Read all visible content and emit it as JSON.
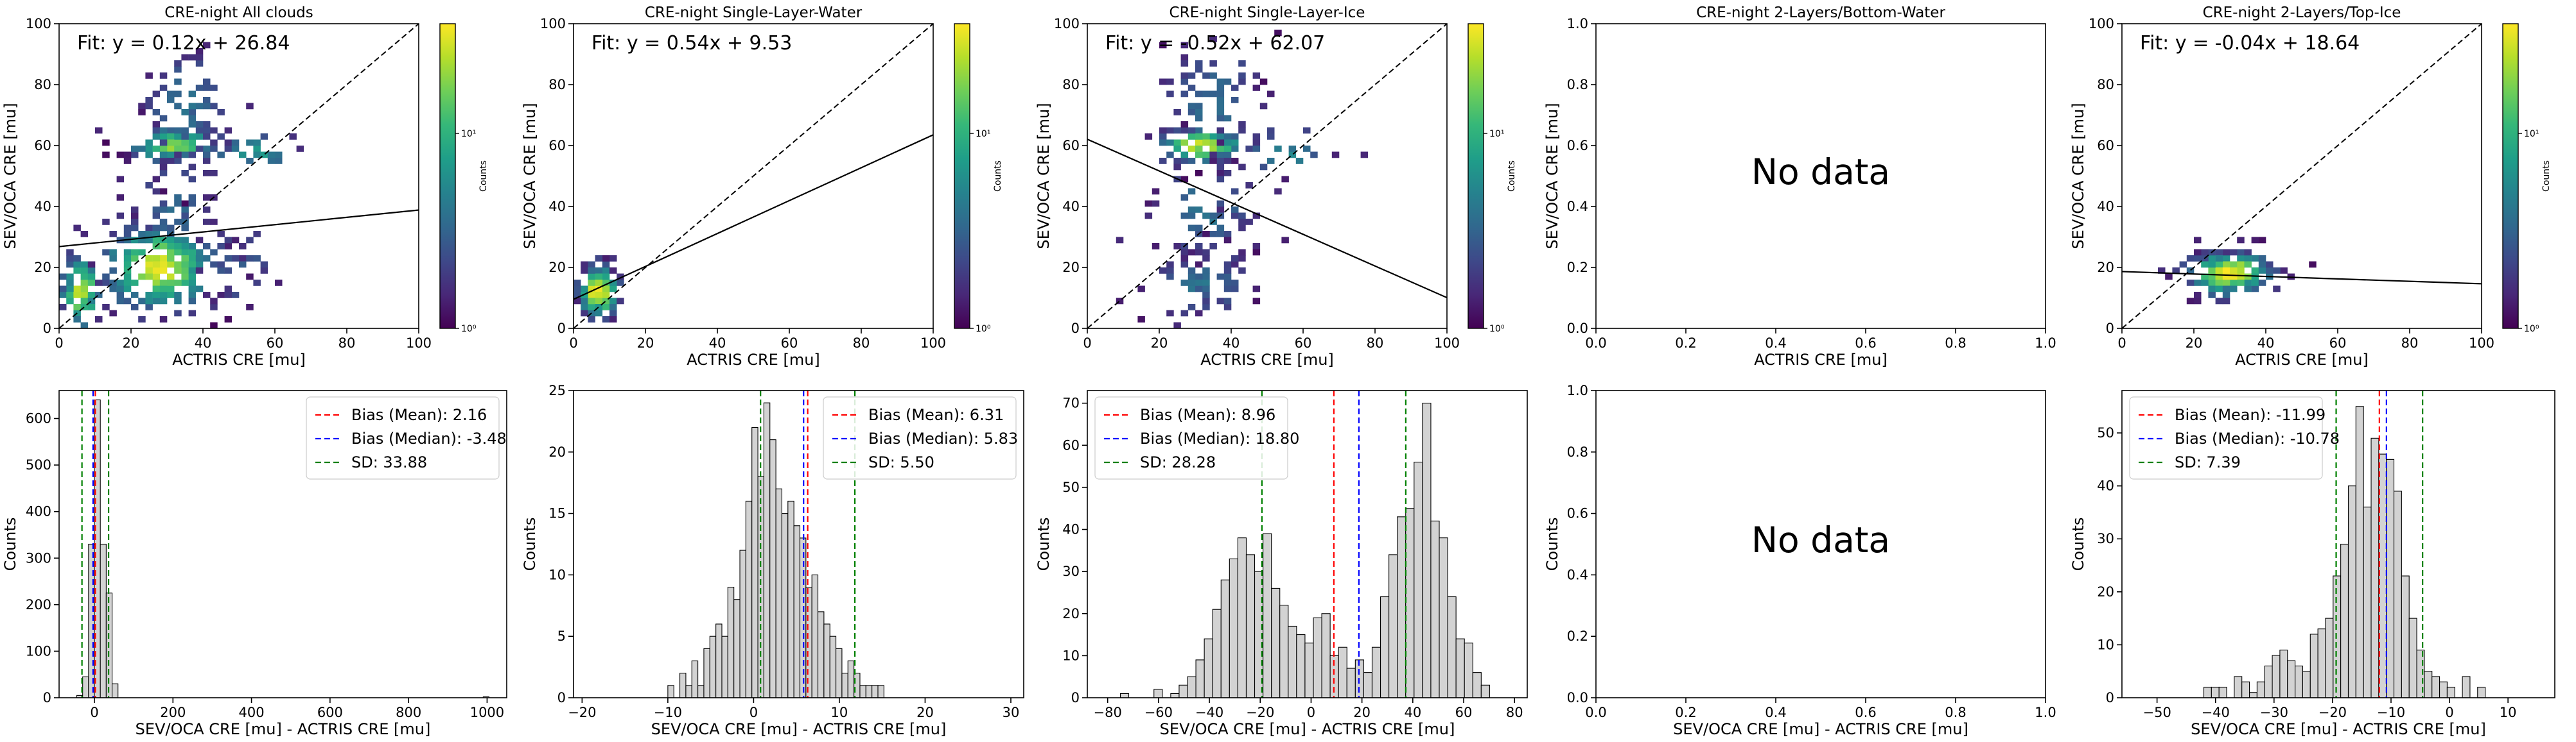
{
  "colormap": {
    "name": "viridis",
    "stops": [
      "#440154",
      "#482878",
      "#3e4989",
      "#31688e",
      "#26828e",
      "#1f9e89",
      "#35b779",
      "#6ece58",
      "#b5de2b",
      "#fde725"
    ]
  },
  "chart_data": [
    {
      "id": "cre-night-all-clouds-2d",
      "type": "heatmap",
      "title": "CRE-night All clouds",
      "xlabel": "ACTRIS CRE [mu]",
      "ylabel": "SEV/OCA CRE [mu]",
      "xlim": [
        0,
        100
      ],
      "ylim": [
        0,
        100
      ],
      "xticks": [
        "0",
        "20",
        "40",
        "60",
        "80",
        "100"
      ],
      "yticks": [
        "0",
        "20",
        "40",
        "60",
        "80",
        "100"
      ],
      "fit_text": "Fit: y = 0.12x + 26.84",
      "fit": {
        "slope": 0.12,
        "intercept": 26.84
      },
      "one_to_one": true,
      "colorbar": {
        "label": "Counts",
        "ticks": [
          "10⁰",
          "10¹"
        ],
        "scale": "log"
      },
      "clusters": [
        {
          "x": 6,
          "y": 12,
          "sx": 3,
          "sy": 7,
          "n": 70,
          "w": 0.85
        },
        {
          "x": 28,
          "y": 20,
          "sx": 9,
          "sy": 8,
          "n": 210,
          "w": 0.9
        },
        {
          "x": 32,
          "y": 60,
          "sx": 7,
          "sy": 3,
          "n": 80,
          "w": 0.75
        },
        {
          "x": 35,
          "y": 72,
          "sx": 7,
          "sy": 12,
          "n": 70,
          "w": 0.3
        },
        {
          "x": 32,
          "y": 38,
          "sx": 8,
          "sy": 10,
          "n": 45,
          "w": 0.25
        },
        {
          "x": 55,
          "y": 58,
          "sx": 8,
          "sy": 4,
          "n": 25,
          "w": 0.45
        },
        {
          "x": 50,
          "y": 20,
          "sx": 10,
          "sy": 8,
          "n": 30,
          "w": 0.2
        }
      ]
    },
    {
      "id": "cre-night-single-layer-water-2d",
      "type": "heatmap",
      "title": "CRE-night Single-Layer-Water",
      "xlabel": "ACTRIS CRE [mu]",
      "ylabel": "SEV/OCA CRE [mu]",
      "xlim": [
        0,
        100
      ],
      "ylim": [
        0,
        100
      ],
      "xticks": [
        "0",
        "20",
        "40",
        "60",
        "80",
        "100"
      ],
      "yticks": [
        "0",
        "20",
        "40",
        "60",
        "80",
        "100"
      ],
      "fit_text": "Fit: y = 0.54x + 9.53",
      "fit": {
        "slope": 0.54,
        "intercept": 9.53
      },
      "one_to_one": true,
      "colorbar": {
        "label": "Counts",
        "ticks": [
          "10⁰",
          "10¹"
        ],
        "scale": "log"
      },
      "clusters": [
        {
          "x": 7,
          "y": 12,
          "sx": 3,
          "sy": 5,
          "n": 110,
          "w": 0.9
        }
      ]
    },
    {
      "id": "cre-night-single-layer-ice-2d",
      "type": "heatmap",
      "title": "CRE-night Single-Layer-Ice",
      "xlabel": "ACTRIS CRE [mu]",
      "ylabel": "SEV/OCA CRE [mu]",
      "xlim": [
        0,
        100
      ],
      "ylim": [
        0,
        100
      ],
      "xticks": [
        "0",
        "20",
        "40",
        "60",
        "80",
        "100"
      ],
      "yticks": [
        "0",
        "20",
        "40",
        "60",
        "80",
        "100"
      ],
      "fit_text": "Fit: y = -0.52x + 62.07",
      "fit": {
        "slope": -0.52,
        "intercept": 62.07
      },
      "one_to_one": true,
      "colorbar": {
        "label": "Counts",
        "ticks": [
          "10⁰",
          "10¹"
        ],
        "scale": "log"
      },
      "clusters": [
        {
          "x": 32,
          "y": 60,
          "sx": 7,
          "sy": 3,
          "n": 90,
          "w": 0.85
        },
        {
          "x": 35,
          "y": 75,
          "sx": 7,
          "sy": 12,
          "n": 70,
          "w": 0.3
        },
        {
          "x": 32,
          "y": 38,
          "sx": 9,
          "sy": 10,
          "n": 60,
          "w": 0.3
        },
        {
          "x": 32,
          "y": 15,
          "sx": 8,
          "sy": 6,
          "n": 60,
          "w": 0.3
        },
        {
          "x": 55,
          "y": 58,
          "sx": 8,
          "sy": 4,
          "n": 20,
          "w": 0.4
        }
      ]
    },
    {
      "id": "cre-night-2-layers-bottom-water-2d",
      "type": "heatmap",
      "title": "CRE-night 2-Layers/Bottom-Water",
      "xlabel": "ACTRIS CRE [mu]",
      "ylabel": "SEV/OCA CRE [mu]",
      "xlim": [
        0,
        1
      ],
      "ylim": [
        0,
        1
      ],
      "xticks": [
        "0.0",
        "0.2",
        "0.4",
        "0.6",
        "0.8",
        "1.0"
      ],
      "yticks": [
        "0.0",
        "0.2",
        "0.4",
        "0.6",
        "0.8",
        "1.0"
      ],
      "no_data_text": "No data"
    },
    {
      "id": "cre-night-2-layers-top-ice-2d",
      "type": "heatmap",
      "title": "CRE-night 2-Layers/Top-Ice",
      "xlabel": "ACTRIS CRE [mu]",
      "ylabel": "SEV/OCA CRE [mu]",
      "xlim": [
        0,
        100
      ],
      "ylim": [
        0,
        100
      ],
      "xticks": [
        "0",
        "20",
        "40",
        "60",
        "80",
        "100"
      ],
      "yticks": [
        "0",
        "20",
        "40",
        "60",
        "80",
        "100"
      ],
      "fit_text": "Fit: y = -0.04x + 18.64",
      "fit": {
        "slope": -0.04,
        "intercept": 18.64
      },
      "one_to_one": true,
      "colorbar": {
        "label": "Counts",
        "ticks": [
          "10⁰",
          "10¹"
        ],
        "scale": "log"
      },
      "clusters": [
        {
          "x": 30,
          "y": 18,
          "sx": 7,
          "sy": 4,
          "n": 160,
          "w": 0.9
        }
      ]
    },
    {
      "id": "all-clouds-bias-hist",
      "type": "bar",
      "xlabel": "SEV/OCA CRE [mu] - ACTRIS CRE [mu]",
      "ylabel": "Counts",
      "xlim": [
        -90,
        1050
      ],
      "ylim": [
        0,
        660
      ],
      "xticks": [
        0,
        200,
        400,
        600,
        800,
        1000
      ],
      "yticks": [
        0,
        100,
        200,
        300,
        400,
        500,
        600
      ],
      "bin_start": -45,
      "bin_width": 15,
      "counts": [
        5,
        45,
        330,
        640,
        330,
        225,
        30,
        0,
        0,
        0,
        0,
        0,
        0,
        0,
        0,
        0,
        0,
        0,
        0,
        0,
        0,
        0,
        0,
        0,
        0,
        0,
        0,
        0,
        0,
        0,
        0,
        0,
        0,
        0,
        0,
        0,
        0,
        0,
        0,
        0,
        0,
        0,
        0,
        0,
        0,
        0,
        0,
        0,
        0,
        0,
        0,
        0,
        0,
        0,
        0,
        0,
        0,
        0,
        0,
        0,
        0,
        0,
        0,
        0,
        0,
        0,
        0,
        0,
        0,
        2
      ],
      "mean": 2.16,
      "median": -3.48,
      "sd": 33.88,
      "legend": [
        "Bias (Mean): 2.16",
        "Bias (Median): -3.48",
        "SD: 33.88"
      ],
      "legend_loc": "upper right"
    },
    {
      "id": "single-layer-water-bias-hist",
      "type": "bar",
      "xlabel": "SEV/OCA CRE [mu] - ACTRIS CRE [mu]",
      "ylabel": "Counts",
      "xlim": [
        -21,
        31.5
      ],
      "ylim": [
        0,
        25
      ],
      "xticks": [
        -20,
        -10,
        0,
        10,
        20,
        30
      ],
      "yticks": [
        0,
        5,
        10,
        15,
        20,
        25
      ],
      "bin_start": -10,
      "bin_width": 0.7,
      "counts": [
        1,
        0,
        2,
        1,
        3,
        1,
        4,
        5,
        6,
        5,
        9,
        8,
        12,
        16,
        22,
        18,
        24,
        21,
        17,
        15,
        16,
        14,
        13,
        9,
        10,
        7,
        6,
        5,
        4,
        2,
        3,
        2,
        1,
        1,
        1,
        1
      ],
      "mean": 6.31,
      "median": 5.83,
      "sd": 5.5,
      "legend": [
        "Bias (Mean): 6.31",
        "Bias (Median): 5.83",
        "SD: 5.50"
      ],
      "legend_loc": "upper right"
    },
    {
      "id": "single-layer-ice-bias-hist",
      "type": "bar",
      "xlabel": "SEV/OCA CRE [mu] - ACTRIS CRE [mu]",
      "ylabel": "Counts",
      "xlim": [
        -88,
        85
      ],
      "ylim": [
        0,
        73
      ],
      "xticks": [
        -80,
        -60,
        -40,
        -20,
        0,
        20,
        40,
        60,
        80
      ],
      "yticks": [
        0,
        10,
        20,
        30,
        40,
        50,
        60,
        70
      ],
      "bin_start": -75,
      "bin_width": 3.3,
      "counts": [
        1,
        0,
        0,
        0,
        2,
        0,
        1,
        3,
        5,
        9,
        14,
        21,
        28,
        33,
        38,
        34,
        30,
        39,
        26,
        22,
        17,
        15,
        13,
        19,
        20,
        10,
        12,
        7,
        9,
        6,
        12,
        24,
        34,
        43,
        45,
        56,
        70,
        42,
        38,
        24,
        14,
        13,
        6,
        3
      ],
      "mean": 8.96,
      "median": 18.8,
      "sd": 28.28,
      "legend": [
        "Bias (Mean): 8.96",
        "Bias (Median): 18.80",
        "SD: 28.28"
      ],
      "legend_loc": "upper left"
    },
    {
      "id": "2-layers-bottom-water-bias-hist",
      "type": "bar",
      "xlabel": "SEV/OCA CRE [mu] - ACTRIS CRE [mu]",
      "ylabel": "Counts",
      "xlim": [
        0,
        1
      ],
      "ylim": [
        0,
        1
      ],
      "xticks": [
        "0.0",
        "0.2",
        "0.4",
        "0.6",
        "0.8",
        "1.0"
      ],
      "yticks": [
        "0.0",
        "0.2",
        "0.4",
        "0.6",
        "0.8",
        "1.0"
      ],
      "no_data_text": "No data"
    },
    {
      "id": "2-layers-top-ice-bias-hist",
      "type": "bar",
      "xlabel": "SEV/OCA CRE [mu] - ACTRIS CRE [mu]",
      "ylabel": "Counts",
      "xlim": [
        -56,
        18
      ],
      "ylim": [
        0,
        58
      ],
      "xticks": [
        -50,
        -40,
        -30,
        -20,
        -10,
        0,
        10
      ],
      "yticks": [
        0,
        10,
        20,
        30,
        40,
        50
      ],
      "bin_start": -42,
      "bin_width": 1.3,
      "counts": [
        2,
        2,
        2,
        0,
        4,
        3,
        1,
        3,
        6,
        8,
        9,
        7,
        6,
        5,
        12,
        13,
        15,
        23,
        29,
        40,
        55,
        36,
        49,
        46,
        45,
        39,
        23,
        15,
        9,
        5,
        4,
        3,
        2,
        0,
        4,
        0,
        2
      ],
      "mean": -11.99,
      "median": -10.78,
      "sd": 7.39,
      "legend": [
        "Bias (Mean): -11.99",
        "Bias (Median): -10.78",
        "SD: 7.39"
      ],
      "legend_loc": "upper left"
    }
  ]
}
